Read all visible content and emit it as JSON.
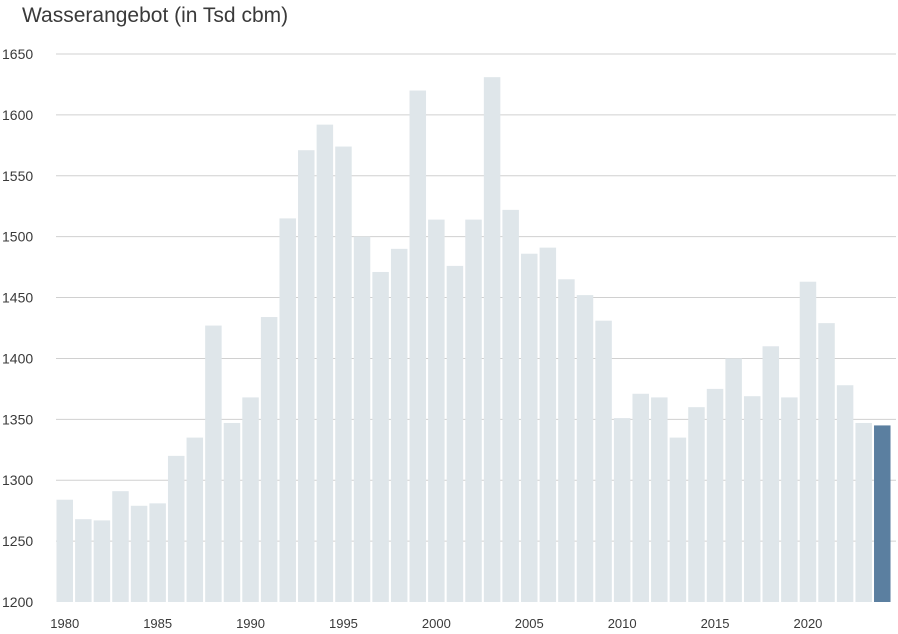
{
  "chart_data": {
    "type": "bar",
    "title": "Wasserangebot (in Tsd cbm)",
    "xlabel": "",
    "ylabel": "",
    "ylim": [
      1200,
      1650
    ],
    "yticks": [
      1200,
      1250,
      1300,
      1350,
      1400,
      1450,
      1500,
      1550,
      1600,
      1650
    ],
    "xtick_labels": [
      "1980",
      "1985",
      "1990",
      "1995",
      "2000",
      "2005",
      "2010",
      "2015",
      "2020"
    ],
    "grid": "horizontal",
    "colors": {
      "bar": "#dfe6ea",
      "highlight": "#5b7fa0",
      "grid": "#d0d0d0"
    },
    "categories": [
      1980,
      1981,
      1982,
      1983,
      1984,
      1985,
      1986,
      1987,
      1988,
      1989,
      1990,
      1991,
      1992,
      1993,
      1994,
      1995,
      1996,
      1997,
      1998,
      1999,
      2000,
      2001,
      2002,
      2003,
      2004,
      2005,
      2006,
      2007,
      2008,
      2009,
      2010,
      2011,
      2012,
      2013,
      2014,
      2015,
      2016,
      2017,
      2018,
      2019,
      2020,
      2021,
      2022,
      2023,
      2024
    ],
    "values": [
      1284,
      1268,
      1267,
      1291,
      1279,
      1281,
      1320,
      1335,
      1427,
      1347,
      1368,
      1434,
      1515,
      1571,
      1592,
      1574,
      1500,
      1471,
      1490,
      1620,
      1514,
      1476,
      1514,
      1631,
      1522,
      1486,
      1491,
      1465,
      1452,
      1431,
      1351,
      1371,
      1368,
      1335,
      1360,
      1375,
      1400,
      1369,
      1410,
      1368,
      1463,
      1429,
      1378,
      1347,
      1345
    ],
    "highlight_index": 44
  }
}
